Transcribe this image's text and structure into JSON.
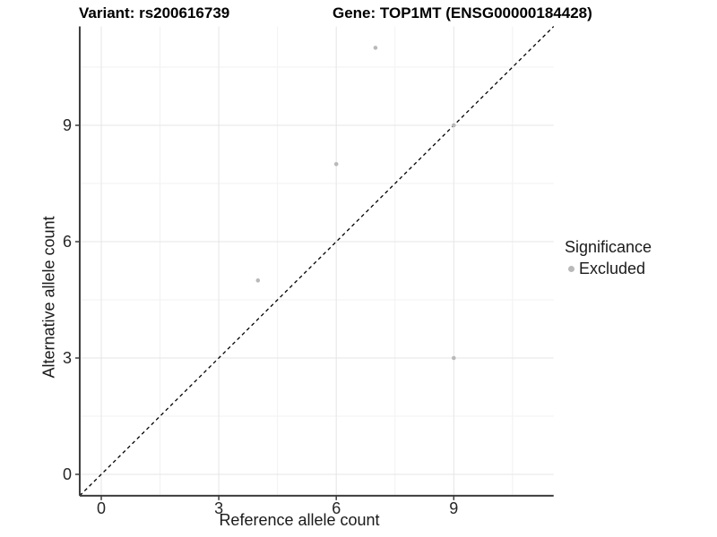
{
  "chart_data": {
    "type": "scatter",
    "title_left": "Variant: rs200616739",
    "title_right": "Gene: TOP1MT (ENSG00000184428)",
    "xlabel": "Reference allele count",
    "ylabel": "Alternative allele count",
    "xlim": [
      -0.55,
      11.55
    ],
    "ylim": [
      -0.55,
      11.55
    ],
    "x_ticks": [
      0,
      3,
      6,
      9
    ],
    "y_ticks": [
      0,
      3,
      6,
      9
    ],
    "x_minor_ticks": [
      1.5,
      4.5,
      7.5,
      10.5
    ],
    "y_minor_ticks": [
      1.5,
      4.5,
      7.5,
      10.5
    ],
    "grid": true,
    "identity_line": {
      "style": "dashed",
      "from": [
        -0.55,
        -0.55
      ],
      "to": [
        11.55,
        11.55
      ]
    },
    "series": [
      {
        "name": "Excluded",
        "color": "#b9b9b9",
        "points": [
          {
            "x": 4,
            "y": 5
          },
          {
            "x": 6,
            "y": 8
          },
          {
            "x": 7,
            "y": 11
          },
          {
            "x": 9,
            "y": 9
          },
          {
            "x": 9,
            "y": 3
          }
        ]
      }
    ],
    "legend": {
      "title": "Significance",
      "position": "right",
      "entries": [
        {
          "label": "Excluded",
          "color": "#b9b9b9"
        }
      ]
    },
    "colors": {
      "grid_major": "#e5e5e5",
      "grid_minor": "#f2f2f2",
      "axis_line": "#3c3c3c",
      "tick_label": "#262626",
      "identity_line": "#000000",
      "background": "#ffffff"
    }
  }
}
